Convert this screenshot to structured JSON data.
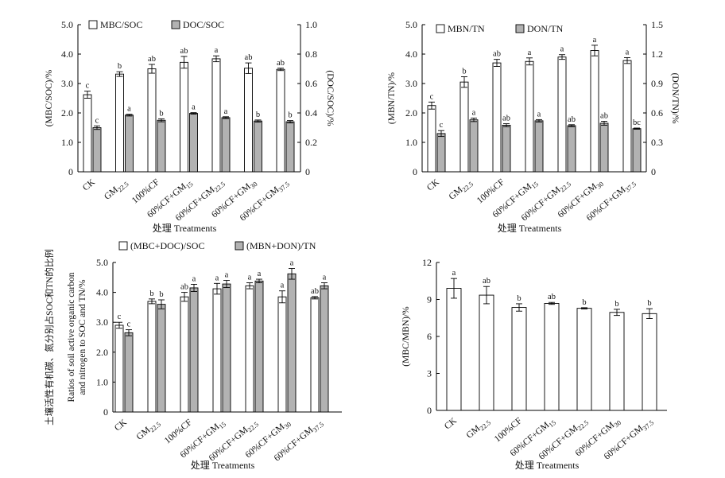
{
  "chart_data": [
    {
      "type": "bar",
      "categories": [
        "CK",
        "GM22.5",
        "100%CF",
        "60%CF+GM15",
        "60%CF+GM22.5",
        "60%CF+GM30",
        "60%CF+GM37.5"
      ],
      "xlabel": "处理 Treatments",
      "ylabel": "(MBC/SOC)/%",
      "ylabel2": "(DOC/SOC)/%",
      "ylim": [
        0,
        5
      ],
      "ylim2": [
        0,
        1
      ],
      "yticks": [
        "0",
        "1.0",
        "2.0",
        "3.0",
        "4.0",
        "5.0"
      ],
      "yticks2": [
        "0",
        "0.2",
        "0.4",
        "0.6",
        "0.8",
        "1.0"
      ],
      "legend_position": "top-left",
      "series": [
        {
          "name": "MBC/SOC",
          "axis": "left",
          "color": "#ffffff",
          "values": [
            2.62,
            3.32,
            3.5,
            3.72,
            3.84,
            3.52,
            3.48
          ],
          "errors": [
            0.12,
            0.08,
            0.15,
            0.2,
            0.1,
            0.18,
            0.04
          ],
          "letters": [
            "c",
            "b",
            "ab",
            "ab",
            "a",
            "ab",
            "ab"
          ]
        },
        {
          "name": "DOC/SOC",
          "axis": "right",
          "color": "#b2b2b2",
          "values": [
            0.3,
            0.385,
            0.35,
            0.397,
            0.368,
            0.345,
            0.34
          ],
          "errors": [
            0.012,
            0.006,
            0.01,
            0.005,
            0.006,
            0.007,
            0.008
          ],
          "letters": [
            "c",
            "a",
            "b",
            "a",
            "a",
            "b",
            "b"
          ]
        }
      ]
    },
    {
      "type": "bar",
      "categories": [
        "CK",
        "GM22.5",
        "100%CF",
        "60%CF+GM15",
        "60%CF+GM22.5",
        "60%CF+GM30",
        "60%CF+GM37.5"
      ],
      "xlabel": "处理 Treatments",
      "ylabel": "(MBN/TN)/%",
      "ylabel2": "(DON/TN)/%",
      "ylim": [
        0,
        5
      ],
      "ylim2": [
        0,
        1.5
      ],
      "yticks": [
        "0",
        "1.0",
        "2.0",
        "3.0",
        "4.0",
        "5.0"
      ],
      "yticks2": [
        "0",
        "0.3",
        "0.6",
        "0.9",
        "1.2",
        "1.5"
      ],
      "legend_position": "top-left",
      "series": [
        {
          "name": "MBN/TN",
          "axis": "left",
          "color": "#ffffff",
          "values": [
            2.25,
            3.05,
            3.7,
            3.75,
            3.9,
            4.12,
            3.78
          ],
          "errors": [
            0.12,
            0.18,
            0.12,
            0.12,
            0.08,
            0.18,
            0.1
          ],
          "letters": [
            "c",
            "b",
            "ab",
            "a",
            "a",
            "a",
            "a"
          ]
        },
        {
          "name": "DON/TN",
          "axis": "right",
          "color": "#b2b2b2",
          "values": [
            0.39,
            0.53,
            0.475,
            0.52,
            0.47,
            0.495,
            0.44
          ],
          "errors": [
            0.03,
            0.018,
            0.015,
            0.012,
            0.01,
            0.02,
            0.006
          ],
          "letters": [
            "c",
            "a",
            "ab",
            "a",
            "ab",
            "ab",
            "bc"
          ]
        }
      ]
    },
    {
      "type": "bar",
      "categories": [
        "CK",
        "GM22.5",
        "100%CF",
        "60%CF+GM15",
        "60%CF+GM22.5",
        "60%CF+GM30",
        "60%CF+GM37.5"
      ],
      "xlabel": "处理 Treatments",
      "ylabel_cn": "土壤活性有机碳、氮分别占SOC和TN的比例",
      "ylabel_en": "Ratios of soil active organic carbon and nitrogen to SOC and TN/%",
      "ylim": [
        0,
        5
      ],
      "yticks": [
        "0",
        "1.0",
        "2.0",
        "3.0",
        "4.0",
        "5.0"
      ],
      "legend_position": "top",
      "series": [
        {
          "name": "(MBC+DOC)/SOC",
          "color": "#ffffff",
          "values": [
            2.9,
            3.7,
            3.85,
            4.12,
            4.22,
            3.85,
            3.82
          ],
          "errors": [
            0.1,
            0.08,
            0.15,
            0.18,
            0.1,
            0.2,
            0.04
          ],
          "letters": [
            "c",
            "b",
            "ab",
            "a",
            "a",
            "a",
            "ab"
          ]
        },
        {
          "name": "(MBN+DON)/TN",
          "color": "#b2b2b2",
          "values": [
            2.65,
            3.6,
            4.15,
            4.28,
            4.38,
            4.62,
            4.22
          ],
          "errors": [
            0.1,
            0.15,
            0.12,
            0.12,
            0.06,
            0.18,
            0.1
          ],
          "letters": [
            "c",
            "b",
            "a",
            "a",
            "a",
            "a",
            "a"
          ]
        }
      ]
    },
    {
      "type": "bar",
      "categories": [
        "CK",
        "GM22.5",
        "100%CF",
        "60%CF+GM15",
        "60%CF+GM22.5",
        "60%CF+GM30",
        "60%CF+GM37.5"
      ],
      "xlabel": "处理 Treatments",
      "ylabel": "(MBC/MBN)/%",
      "ylim": [
        0,
        12
      ],
      "yticks": [
        "0",
        "3",
        "6",
        "9",
        "12"
      ],
      "series": [
        {
          "name": "",
          "color": "#ffffff",
          "values": [
            9.9,
            9.35,
            8.35,
            8.68,
            8.28,
            7.95,
            7.85
          ],
          "errors": [
            0.8,
            0.7,
            0.3,
            0.08,
            0.05,
            0.25,
            0.4
          ],
          "letters": [
            "a",
            "ab",
            "b",
            "ab",
            "b",
            "b",
            "b"
          ]
        }
      ]
    }
  ]
}
